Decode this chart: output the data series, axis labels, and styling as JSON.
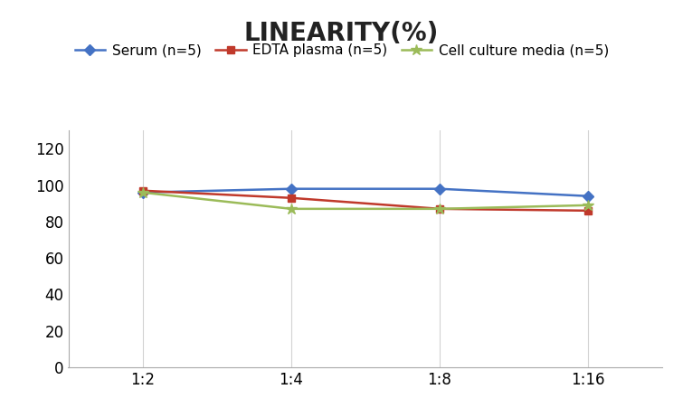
{
  "title": "LINEARITY(%)",
  "x_labels": [
    "1:2",
    "1:4",
    "1:8",
    "1:16"
  ],
  "x_values": [
    0,
    1,
    2,
    3
  ],
  "series": [
    {
      "name": "Serum (n=5)",
      "values": [
        96,
        98,
        98,
        94
      ],
      "color": "#4472C4",
      "marker": "D",
      "markersize": 6,
      "linewidth": 1.8
    },
    {
      "name": "EDTA plasma (n=5)",
      "values": [
        97,
        93,
        87,
        86
      ],
      "color": "#C0392B",
      "marker": "s",
      "markersize": 6,
      "linewidth": 1.8
    },
    {
      "name": "Cell culture media (n=5)",
      "values": [
        96,
        87,
        87,
        89
      ],
      "color": "#9BBB59",
      "marker": "*",
      "markersize": 9,
      "linewidth": 1.8
    }
  ],
  "ylim": [
    0,
    130
  ],
  "yticks": [
    0,
    20,
    40,
    60,
    80,
    100,
    120
  ],
  "background_color": "#FFFFFF",
  "title_fontsize": 20,
  "title_fontweight": "bold",
  "legend_fontsize": 11,
  "tick_fontsize": 12,
  "grid_color": "#D3D3D3",
  "spine_color": "#AAAAAA"
}
